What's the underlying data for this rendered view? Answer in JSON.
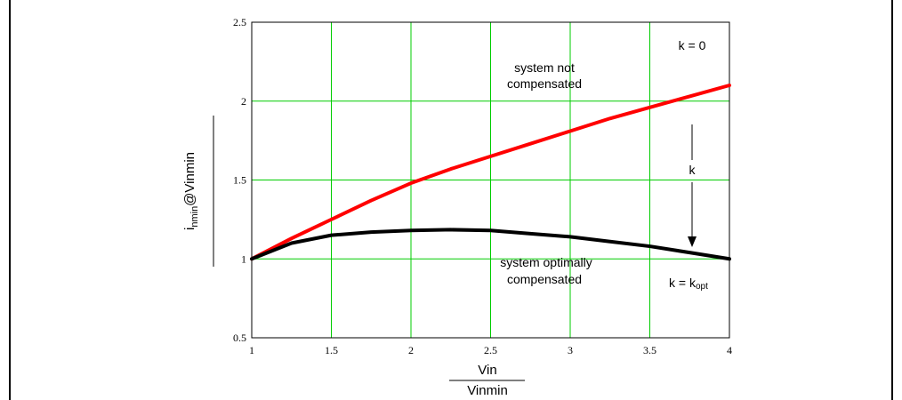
{
  "chart_data": {
    "type": "line",
    "xlim": [
      1,
      4
    ],
    "ylim": [
      0.5,
      2.5
    ],
    "x_ticks": [
      "1",
      "1.5",
      "2",
      "2.5",
      "3",
      "3.5",
      "4"
    ],
    "y_ticks": [
      "0.5",
      "1",
      "1.5",
      "2",
      "2.5"
    ],
    "grid": true,
    "grid_color": "#00cc00",
    "xlabel_numerator": "Vin",
    "xlabel_denominator": "Vinmin",
    "ylabel": "i",
    "ylabel_tail": "@Vinmin",
    "ylabel_sub": "nmin",
    "series": [
      {
        "color": "#ff0000",
        "x": [
          1.0,
          1.25,
          1.5,
          1.75,
          2.0,
          2.25,
          2.5,
          2.75,
          3.0,
          3.25,
          3.5,
          3.75,
          4.0
        ],
        "y": [
          1.0,
          1.13,
          1.25,
          1.37,
          1.48,
          1.57,
          1.65,
          1.73,
          1.81,
          1.89,
          1.96,
          2.03,
          2.1
        ]
      },
      {
        "color": "#000000",
        "x": [
          1.0,
          1.25,
          1.5,
          1.75,
          2.0,
          2.25,
          2.5,
          2.75,
          3.0,
          3.25,
          3.5,
          3.75,
          4.0
        ],
        "y": [
          1.0,
          1.1,
          1.15,
          1.17,
          1.18,
          1.185,
          1.18,
          1.16,
          1.14,
          1.11,
          1.08,
          1.04,
          1.0
        ]
      }
    ],
    "annotations": {
      "not_comp_line1": "system not",
      "not_comp_line2": "compensated",
      "opt_line1": "system optimally",
      "opt_line2": "compensated",
      "k_zero": "k = 0",
      "k_arrow": "k",
      "k_opt_prefix": "k = k",
      "k_opt_sub": "opt"
    }
  }
}
